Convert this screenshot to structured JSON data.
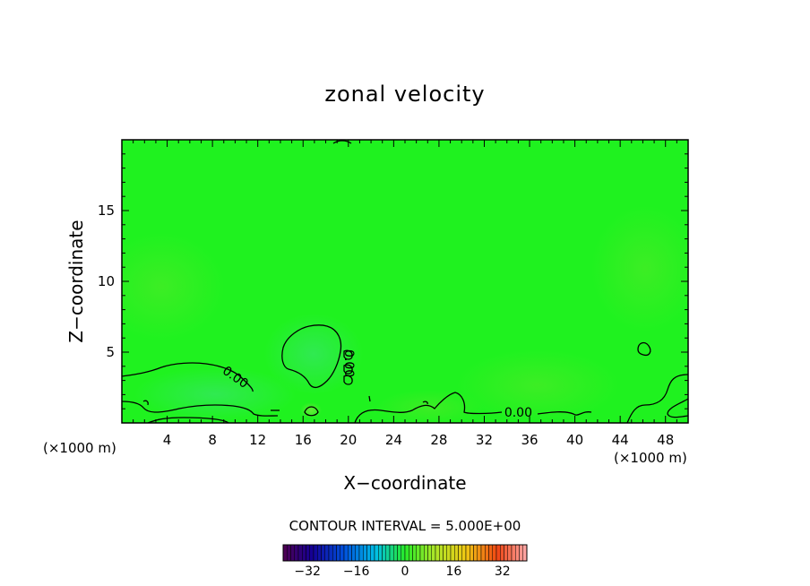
{
  "chart_data": {
    "type": "heatmap",
    "title": "zonal velocity",
    "xlabel": "X−coordinate",
    "ylabel": "Z−coordinate",
    "x_unit_left": "(×1000 m)",
    "x_unit_right": "(×1000 m)",
    "xlim": [
      0,
      50
    ],
    "ylim": [
      0,
      20
    ],
    "x_ticks": [
      4,
      8,
      12,
      16,
      20,
      24,
      28,
      32,
      36,
      40,
      44,
      48
    ],
    "x_tick_labels": [
      "4",
      "8",
      "12",
      "16",
      "20",
      "24",
      "28",
      "32",
      "36",
      "40",
      "44",
      "48"
    ],
    "y_ticks": [
      5,
      10,
      15
    ],
    "y_tick_labels": [
      "5",
      "10",
      "15"
    ],
    "contour_labels": [
      {
        "text": "0.00",
        "x": 10,
        "y": 3.2,
        "rotate": 35
      },
      {
        "text": "0.00",
        "x": 20,
        "y": 4.2,
        "rotate": 90
      },
      {
        "text": "0.00",
        "x": 35,
        "y": 0.7,
        "rotate": 0
      }
    ],
    "contour_interval_text": "CONTOUR INTERVAL = 5.000E+00",
    "colorbar": {
      "min": -40,
      "max": 40,
      "ticks": [
        -32,
        -16,
        0,
        16,
        32
      ],
      "tick_labels": [
        "−32",
        "−16",
        "0",
        "16",
        "32"
      ]
    },
    "field_color": "#1ff21f"
  }
}
